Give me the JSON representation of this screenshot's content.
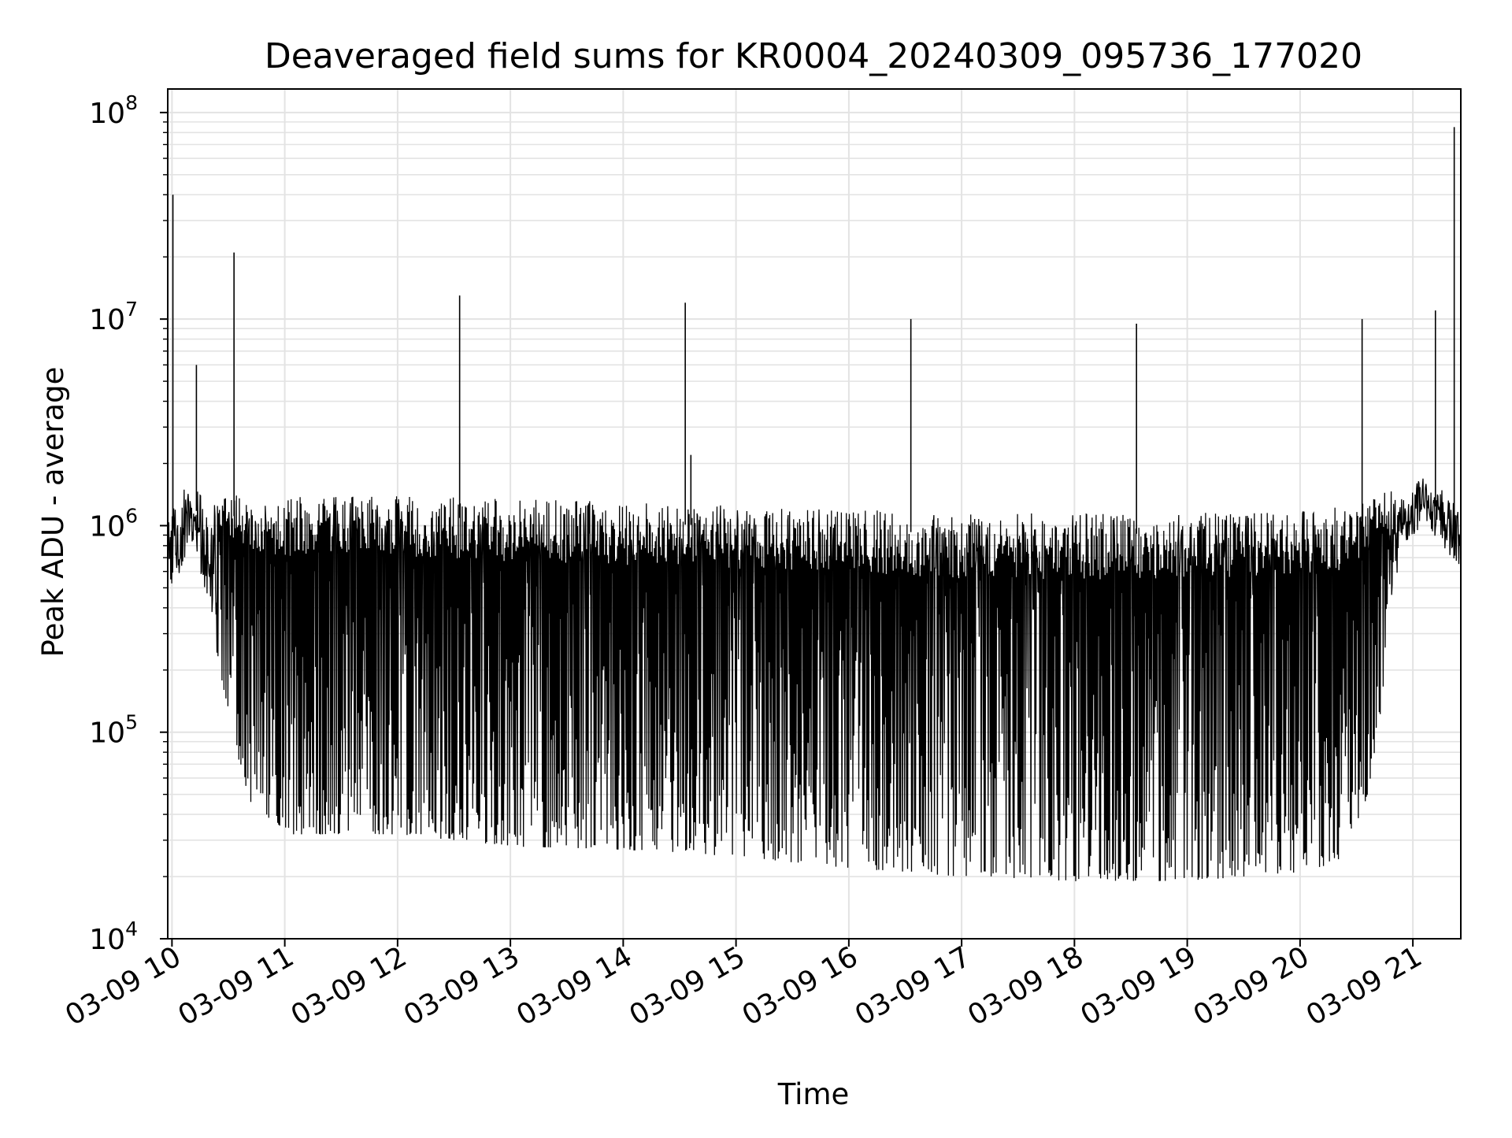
{
  "chart_data": {
    "type": "line",
    "title": "Deaveraged field sums for KR0004_20240309_095736_177020",
    "xlabel": "Time",
    "ylabel": "Peak ADU - average",
    "y_scale": "log",
    "ylim": [
      10000,
      130000000
    ],
    "xlim": [
      "03-09 09:57:45",
      "03-09 21:25:30"
    ],
    "grid": true,
    "x_ticks": [
      {
        "value": "03-09 10:00",
        "label": "03-09 10"
      },
      {
        "value": "03-09 11:00",
        "label": "03-09 11"
      },
      {
        "value": "03-09 12:00",
        "label": "03-09 12"
      },
      {
        "value": "03-09 13:00",
        "label": "03-09 13"
      },
      {
        "value": "03-09 14:00",
        "label": "03-09 14"
      },
      {
        "value": "03-09 15:00",
        "label": "03-09 15"
      },
      {
        "value": "03-09 16:00",
        "label": "03-09 16"
      },
      {
        "value": "03-09 17:00",
        "label": "03-09 17"
      },
      {
        "value": "03-09 18:00",
        "label": "03-09 18"
      },
      {
        "value": "03-09 19:00",
        "label": "03-09 19"
      },
      {
        "value": "03-09 20:00",
        "label": "03-09 20"
      },
      {
        "value": "03-09 21:00",
        "label": "03-09 21"
      }
    ],
    "y_ticks": [
      {
        "value": 10000,
        "base": "10",
        "exp": "4"
      },
      {
        "value": 100000,
        "base": "10",
        "exp": "5"
      },
      {
        "value": 1000000,
        "base": "10",
        "exp": "6"
      },
      {
        "value": 10000000,
        "base": "10",
        "exp": "7"
      },
      {
        "value": 100000000,
        "base": "10",
        "exp": "8"
      }
    ],
    "series": [
      {
        "color": "#000000",
        "envelope": [
          {
            "t": "03-09 09:58",
            "hi": 1200000,
            "lo": 400000
          },
          {
            "t": "03-09 10:06",
            "hi": 1500000,
            "lo": 500000
          },
          {
            "t": "03-09 10:12",
            "hi": 1500000,
            "lo": 600000
          },
          {
            "t": "03-09 10:18",
            "hi": 1400000,
            "lo": 350000
          },
          {
            "t": "03-09 10:24",
            "hi": 1400000,
            "lo": 220000
          },
          {
            "t": "03-09 10:30",
            "hi": 1400000,
            "lo": 130000
          },
          {
            "t": "03-09 10:36",
            "hi": 1400000,
            "lo": 70000
          },
          {
            "t": "03-09 10:42",
            "hi": 1400000,
            "lo": 45000
          },
          {
            "t": "03-09 11:00",
            "hi": 1400000,
            "lo": 32000
          },
          {
            "t": "03-09 12:00",
            "hi": 1400000,
            "lo": 32000
          },
          {
            "t": "03-09 13:00",
            "hi": 1350000,
            "lo": 28000
          },
          {
            "t": "03-09 14:00",
            "hi": 1300000,
            "lo": 27000
          },
          {
            "t": "03-09 15:00",
            "hi": 1250000,
            "lo": 25000
          },
          {
            "t": "03-09 16:00",
            "hi": 1200000,
            "lo": 22000
          },
          {
            "t": "03-09 17:00",
            "hi": 1150000,
            "lo": 20000
          },
          {
            "t": "03-09 18:00",
            "hi": 1150000,
            "lo": 19000
          },
          {
            "t": "03-09 19:00",
            "hi": 1150000,
            "lo": 19000
          },
          {
            "t": "03-09 20:00",
            "hi": 1200000,
            "lo": 21000
          },
          {
            "t": "03-09 20:24",
            "hi": 1250000,
            "lo": 24000
          },
          {
            "t": "03-09 20:36",
            "hi": 1300000,
            "lo": 50000
          },
          {
            "t": "03-09 20:42",
            "hi": 1400000,
            "lo": 110000
          },
          {
            "t": "03-09 20:48",
            "hi": 1500000,
            "lo": 300000
          },
          {
            "t": "03-09 20:54",
            "hi": 1500000,
            "lo": 600000
          },
          {
            "t": "03-09 21:05",
            "hi": 1700000,
            "lo": 900000
          },
          {
            "t": "03-09 21:15",
            "hi": 1500000,
            "lo": 700000
          },
          {
            "t": "03-09 21:25",
            "hi": 1200000,
            "lo": 500000
          }
        ],
        "spikes": [
          {
            "t": "03-09 10:00:30",
            "value": 40000000
          },
          {
            "t": "03-09 10:13",
            "value": 6000000
          },
          {
            "t": "03-09 10:33",
            "value": 21000000
          },
          {
            "t": "03-09 12:33",
            "value": 13000000
          },
          {
            "t": "03-09 14:33",
            "value": 12000000
          },
          {
            "t": "03-09 14:36",
            "value": 2200000
          },
          {
            "t": "03-09 16:33",
            "value": 10000000
          },
          {
            "t": "03-09 18:33",
            "value": 9500000
          },
          {
            "t": "03-09 20:33",
            "value": 10000000
          },
          {
            "t": "03-09 21:12",
            "value": 11000000
          },
          {
            "t": "03-09 21:22",
            "value": 85000000
          }
        ]
      }
    ]
  }
}
